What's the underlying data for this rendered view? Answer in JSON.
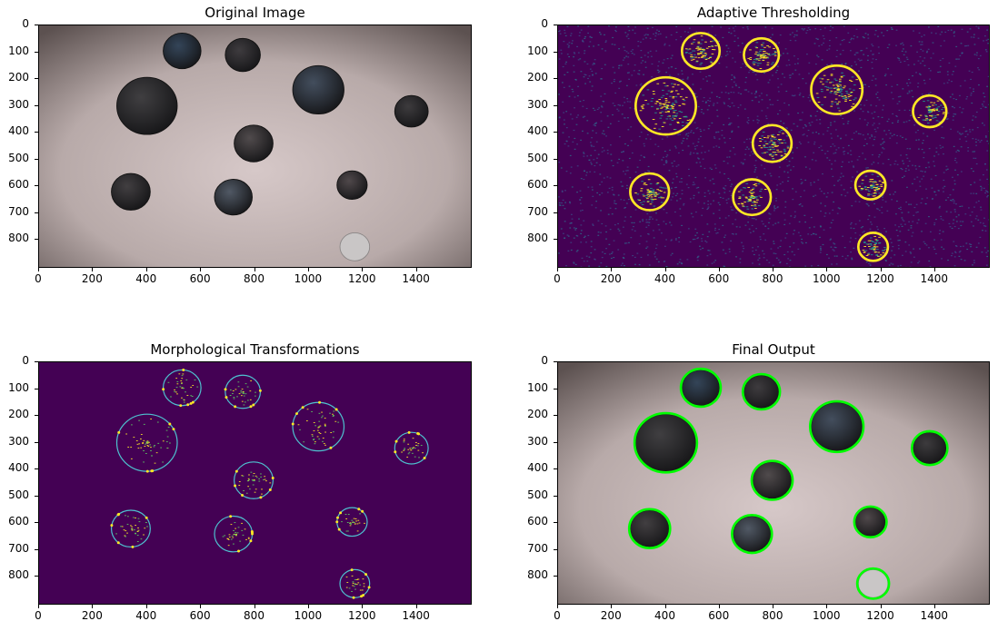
{
  "panels": [
    {
      "id": "original",
      "title": "Original Image",
      "style": "photo"
    },
    {
      "id": "adaptive",
      "title": "Adaptive Thresholding",
      "style": "threshold"
    },
    {
      "id": "morph",
      "title": "Morphological Transformations",
      "style": "morph"
    },
    {
      "id": "final",
      "title": "Final Output",
      "style": "final"
    }
  ],
  "axes": {
    "x_ticks": [
      0,
      200,
      400,
      600,
      800,
      1000,
      1200,
      1400
    ],
    "y_ticks": [
      0,
      100,
      200,
      300,
      400,
      500,
      600,
      700,
      800
    ],
    "xlim": [
      0,
      1600
    ],
    "ylim": [
      0,
      900
    ]
  },
  "coins": [
    {
      "cx": 530,
      "cy": 95,
      "r": 70,
      "tone": "#22384f"
    },
    {
      "cx": 755,
      "cy": 110,
      "r": 65,
      "tone": "#2b2a2e"
    },
    {
      "cx": 1035,
      "cy": 240,
      "r": 95,
      "tone": "#2e3d4f"
    },
    {
      "cx": 400,
      "cy": 300,
      "r": 112,
      "tone": "#2a2b2e"
    },
    {
      "cx": 1380,
      "cy": 320,
      "r": 62,
      "tone": "#27272a"
    },
    {
      "cx": 795,
      "cy": 440,
      "r": 72,
      "tone": "#3a3638"
    },
    {
      "cx": 340,
      "cy": 620,
      "r": 72,
      "tone": "#2b2a2d"
    },
    {
      "cx": 720,
      "cy": 640,
      "r": 70,
      "tone": "#3a4654"
    },
    {
      "cx": 1160,
      "cy": 595,
      "r": 56,
      "tone": "#3a3437"
    },
    {
      "cx": 1170,
      "cy": 825,
      "r": 55,
      "tone": "#c9c6c6"
    }
  ],
  "colors": {
    "threshold_bg": "#440154",
    "threshold_fg": "#fde725",
    "threshold_mid": "#21918c",
    "final_outline": "#00ff00",
    "photo_light": "#d6c8c8",
    "photo_dark": "#5c5150"
  }
}
